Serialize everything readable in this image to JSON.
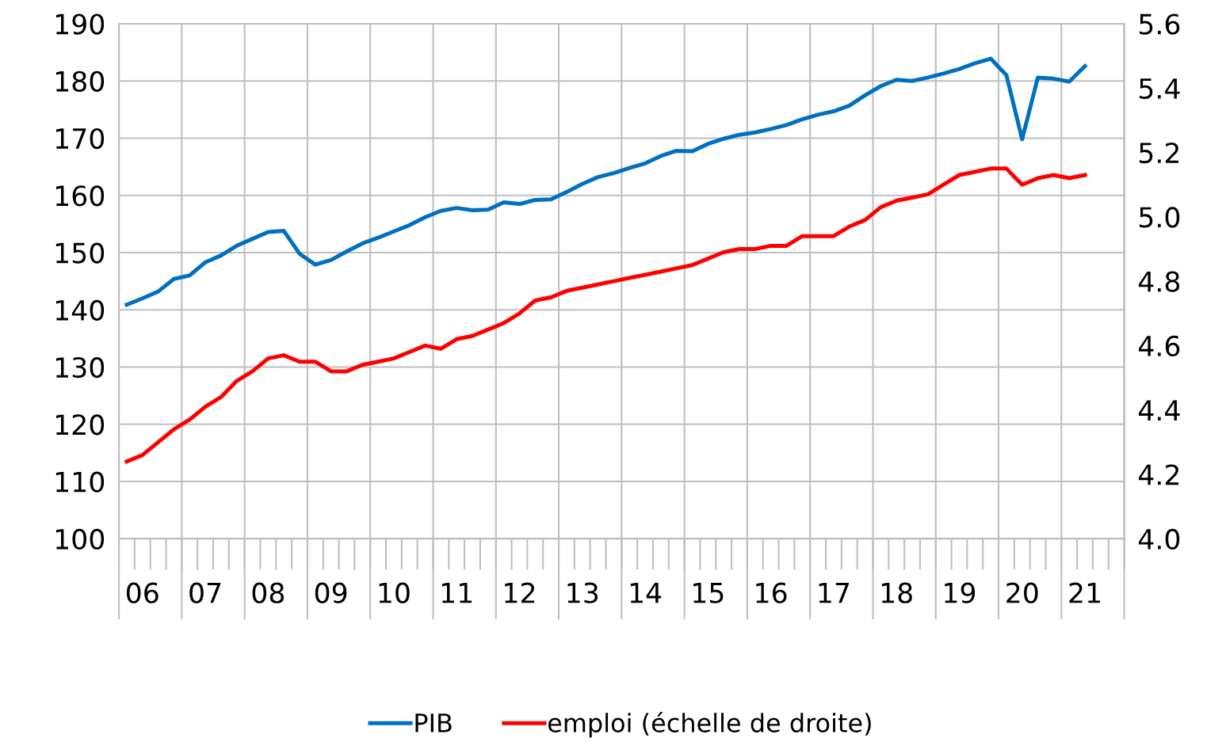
{
  "chart_data": {
    "type": "line",
    "categories": [
      null,
      "06",
      null,
      null,
      null,
      "07",
      null,
      null,
      null,
      "08",
      null,
      null,
      null,
      "09",
      null,
      null,
      null,
      "10",
      null,
      null,
      null,
      "11",
      null,
      null,
      null,
      "12",
      null,
      null,
      null,
      "13",
      null,
      null,
      null,
      "14",
      null,
      null,
      null,
      "15",
      null,
      null,
      null,
      "16",
      null,
      null,
      null,
      "17",
      null,
      null,
      null,
      "18",
      null,
      null,
      null,
      "19",
      null,
      null,
      null,
      "20",
      null,
      null,
      null,
      "21",
      null,
      null
    ],
    "series": [
      {
        "name": "PIB",
        "color": "#0070c0",
        "values": [
          140.9,
          142.0,
          143.2,
          145.4,
          146.0,
          148.3,
          149.5,
          151.2,
          152.4,
          153.6,
          153.8,
          149.8,
          147.9,
          148.7,
          150.2,
          151.6,
          152.6,
          153.7,
          154.8,
          156.2,
          157.3,
          157.8,
          157.4,
          157.5,
          158.8,
          158.5,
          159.2,
          159.3,
          160.6,
          162.0,
          163.2,
          163.9,
          164.8,
          165.6,
          166.9,
          167.8,
          167.7,
          169.0,
          169.9,
          170.6,
          171.0,
          171.6,
          172.3,
          173.3,
          174.1,
          174.7,
          175.7,
          177.5,
          179.1,
          180.2,
          180.0,
          180.6,
          181.3,
          182.1,
          183.1,
          183.9,
          181.0,
          169.8,
          180.6,
          180.4,
          179.9,
          182.6,
          null,
          null
        ]
      },
      {
        "name": "emploi (échelle de droite)",
        "color": "#ff0000",
        "axis": "y2",
        "values": [
          4.24,
          4.26,
          4.3,
          4.34,
          4.37,
          4.41,
          4.44,
          4.49,
          4.52,
          4.56,
          4.57,
          4.55,
          4.55,
          4.52,
          4.52,
          4.54,
          4.55,
          4.56,
          4.58,
          4.6,
          4.59,
          4.62,
          4.63,
          4.65,
          4.67,
          4.7,
          4.74,
          4.75,
          4.77,
          4.78,
          4.79,
          4.8,
          4.81,
          4.82,
          4.83,
          4.84,
          4.85,
          4.87,
          4.89,
          4.9,
          4.9,
          4.91,
          4.91,
          4.94,
          4.94,
          4.94,
          4.97,
          4.99,
          5.03,
          5.05,
          5.06,
          5.07,
          5.1,
          5.13,
          5.14,
          5.15,
          5.15,
          5.1,
          5.12,
          5.13,
          5.12,
          5.13,
          null,
          null
        ]
      }
    ],
    "ylim": [
      100,
      190
    ],
    "yticks": [
      100,
      110,
      120,
      130,
      140,
      150,
      160,
      170,
      180,
      190
    ],
    "y2lim": [
      4.0,
      5.6
    ],
    "y2ticks": [
      {
        "value": 4.0,
        "label": "4.0"
      },
      {
        "value": 4.2,
        "label": "4.2"
      },
      {
        "value": 4.4,
        "label": "4.4"
      },
      {
        "value": 4.6,
        "label": "4.6"
      },
      {
        "value": 4.8,
        "label": "4.8"
      },
      {
        "value": 5.0,
        "label": "5.0"
      },
      {
        "value": 5.2,
        "label": "5.2"
      },
      {
        "value": 5.4,
        "label": "5.4"
      },
      {
        "value": 5.6,
        "label": "5.6"
      }
    ],
    "grid": true,
    "legend": "bottom",
    "marker": "none",
    "line_style": "solid"
  }
}
